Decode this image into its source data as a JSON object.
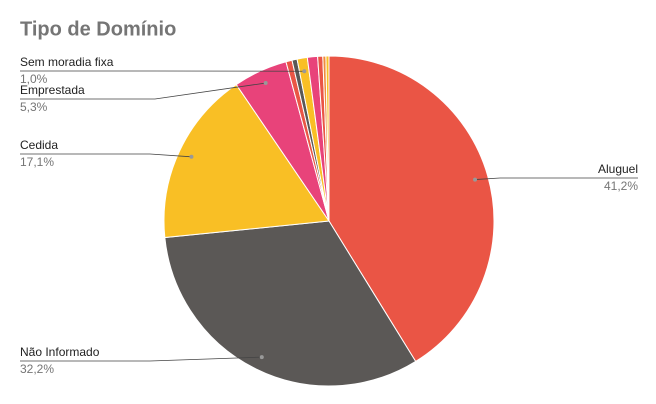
{
  "chart_data": {
    "type": "pie",
    "title": "Tipo de Domínio",
    "categories": [
      "Aluguel",
      "Não Informado",
      "Cedida",
      "Emprestada",
      null,
      null,
      "Sem moradia fixa",
      null,
      null,
      null,
      null
    ],
    "values": [
      41.2,
      32.2,
      17.1,
      5.3,
      0.6,
      0.5,
      1.0,
      1.0,
      0.5,
      0.3,
      0.3
    ],
    "value_labels": [
      "41,2%",
      "32,2%",
      "17,1%",
      "5,3%",
      null,
      null,
      "1,0%",
      null,
      null,
      null,
      null
    ],
    "colors": [
      "#ea5545",
      "#5b5856",
      "#f9bf25",
      "#e8437a",
      "#ea5545",
      "#5b5856",
      "#f9bf25",
      "#e8437a",
      "#ea5545",
      "#f08b3d",
      "#f9bf25"
    ]
  }
}
